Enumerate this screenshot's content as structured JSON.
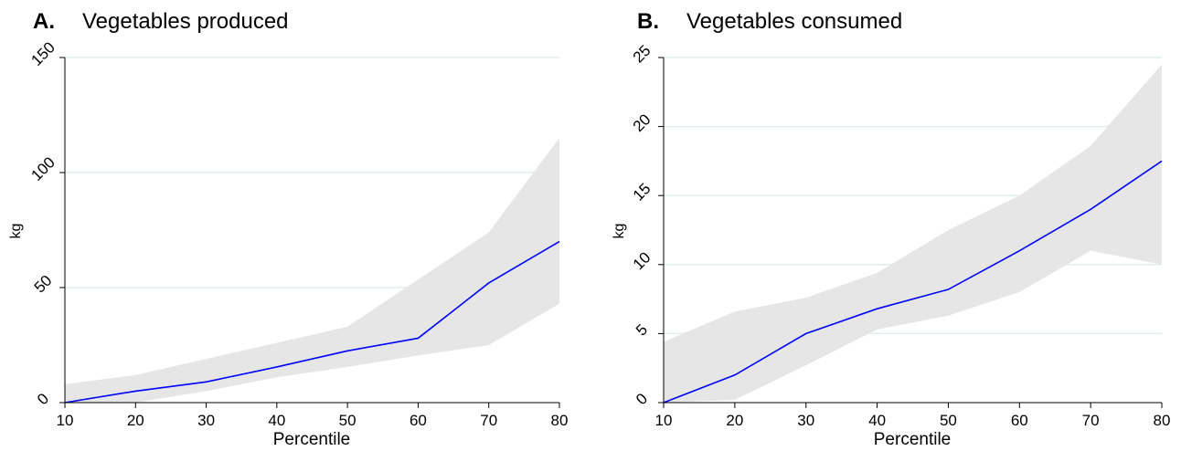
{
  "chart_data": [
    {
      "type": "line",
      "panel_letter": "A.",
      "title": "Vegetables produced",
      "xlabel": "Percentile",
      "ylabel": "kg",
      "x": [
        10,
        20,
        30,
        40,
        50,
        60,
        70,
        80
      ],
      "xticks": [
        "10",
        "20",
        "30",
        "40",
        "50",
        "60",
        "70",
        "80"
      ],
      "yticks": [
        "0",
        "50",
        "100",
        "150"
      ],
      "ylim": [
        0,
        150
      ],
      "grid": true,
      "series": [
        {
          "values": [
            0,
            5,
            9,
            15.5,
            22.5,
            28,
            52,
            70
          ],
          "lower": [
            0,
            0,
            5,
            11,
            15.5,
            20.5,
            25,
            43
          ],
          "upper": [
            8,
            12,
            19,
            26,
            33,
            53.5,
            74,
            115
          ],
          "color": "#0000ff",
          "band_color": "#e6e6e6"
        }
      ]
    },
    {
      "type": "line",
      "panel_letter": "B.",
      "title": "Vegetables consumed",
      "xlabel": "Percentile",
      "ylabel": "kg",
      "x": [
        10,
        20,
        30,
        40,
        50,
        60,
        70,
        80
      ],
      "xticks": [
        "10",
        "20",
        "30",
        "40",
        "50",
        "60",
        "70",
        "80"
      ],
      "yticks": [
        "0",
        "5",
        "10",
        "15",
        "20",
        "25"
      ],
      "ylim": [
        0,
        25
      ],
      "grid": true,
      "series": [
        {
          "values": [
            0,
            2,
            5,
            6.8,
            8.2,
            11,
            14,
            17.5
          ],
          "lower": [
            0,
            0.2,
            2.7,
            5.3,
            6.3,
            8,
            11,
            10
          ],
          "upper": [
            4.4,
            6.6,
            7.6,
            9.4,
            12.5,
            15,
            18.6,
            24.5
          ],
          "color": "#0000ff",
          "band_color": "#e6e6e6"
        }
      ]
    }
  ]
}
